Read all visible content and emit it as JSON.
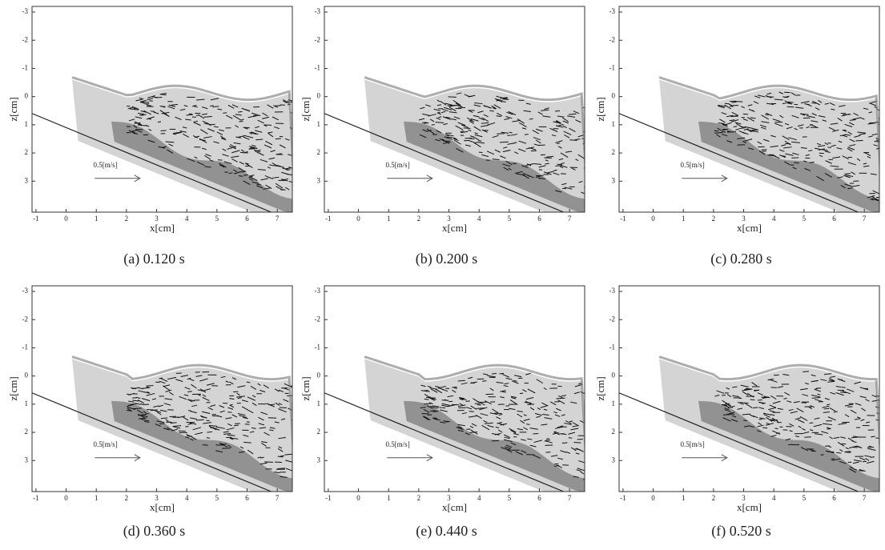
{
  "chart_data": [
    {
      "type": "field",
      "caption": "(a) 0.120 s",
      "xlabel": "x[cm]",
      "ylabel": "z[cm]",
      "annotation": "0.5[m/s]",
      "xlim": [
        -1.13,
        7.5
      ],
      "ylim": [
        -3.2,
        4.1
      ],
      "y_inverted": true,
      "xticks": [
        -1,
        0,
        1,
        2,
        3,
        4,
        5,
        6,
        7
      ],
      "yticks": [
        -3,
        -2,
        -1,
        0,
        1,
        2,
        3
      ]
    },
    {
      "type": "field",
      "caption": "(b) 0.200 s",
      "xlabel": "x[cm]",
      "ylabel": "z[cm]",
      "annotation": "0.5[m/s]",
      "xlim": [
        -1.13,
        7.5
      ],
      "ylim": [
        -3.2,
        4.1
      ],
      "y_inverted": true,
      "xticks": [
        -1,
        0,
        1,
        2,
        3,
        4,
        5,
        6,
        7
      ],
      "yticks": [
        -3,
        -2,
        -1,
        0,
        1,
        2,
        3
      ]
    },
    {
      "type": "field",
      "caption": "(c) 0.280 s",
      "xlabel": "x[cm]",
      "ylabel": "z[cm]",
      "annotation": "0.5[m/s]",
      "xlim": [
        -1.13,
        7.5
      ],
      "ylim": [
        -3.2,
        4.1
      ],
      "y_inverted": true,
      "xticks": [
        -1,
        0,
        1,
        2,
        3,
        4,
        5,
        6,
        7
      ],
      "yticks": [
        -3,
        -2,
        -1,
        0,
        1,
        2,
        3
      ]
    },
    {
      "type": "field",
      "caption": "(d) 0.360 s",
      "xlabel": "x[cm]",
      "ylabel": "z[cm]",
      "annotation": "0.5[m/s]",
      "xlim": [
        -1.13,
        7.5
      ],
      "ylim": [
        -3.2,
        4.1
      ],
      "y_inverted": true,
      "xticks": [
        -1,
        0,
        1,
        2,
        3,
        4,
        5,
        6,
        7
      ],
      "yticks": [
        -3,
        -2,
        -1,
        0,
        1,
        2,
        3
      ]
    },
    {
      "type": "field",
      "caption": "(e) 0.440 s",
      "xlabel": "x[cm]",
      "ylabel": "z[cm]",
      "annotation": "0.5[m/s]",
      "xlim": [
        -1.13,
        7.5
      ],
      "ylim": [
        -3.2,
        4.1
      ],
      "y_inverted": true,
      "xticks": [
        -1,
        0,
        1,
        2,
        3,
        4,
        5,
        6,
        7
      ],
      "yticks": [
        -3,
        -2,
        -1,
        0,
        1,
        2,
        3
      ]
    },
    {
      "type": "field",
      "caption": "(f) 0.520 s",
      "xlabel": "x[cm]",
      "ylabel": "z[cm]",
      "annotation": "0.5[m/s]",
      "xlim": [
        -1.13,
        7.5
      ],
      "ylim": [
        -3.2,
        4.1
      ],
      "y_inverted": true,
      "xticks": [
        -1,
        0,
        1,
        2,
        3,
        4,
        5,
        6,
        7
      ],
      "yticks": [
        -3,
        -2,
        -1,
        0,
        1,
        2,
        3
      ]
    }
  ]
}
